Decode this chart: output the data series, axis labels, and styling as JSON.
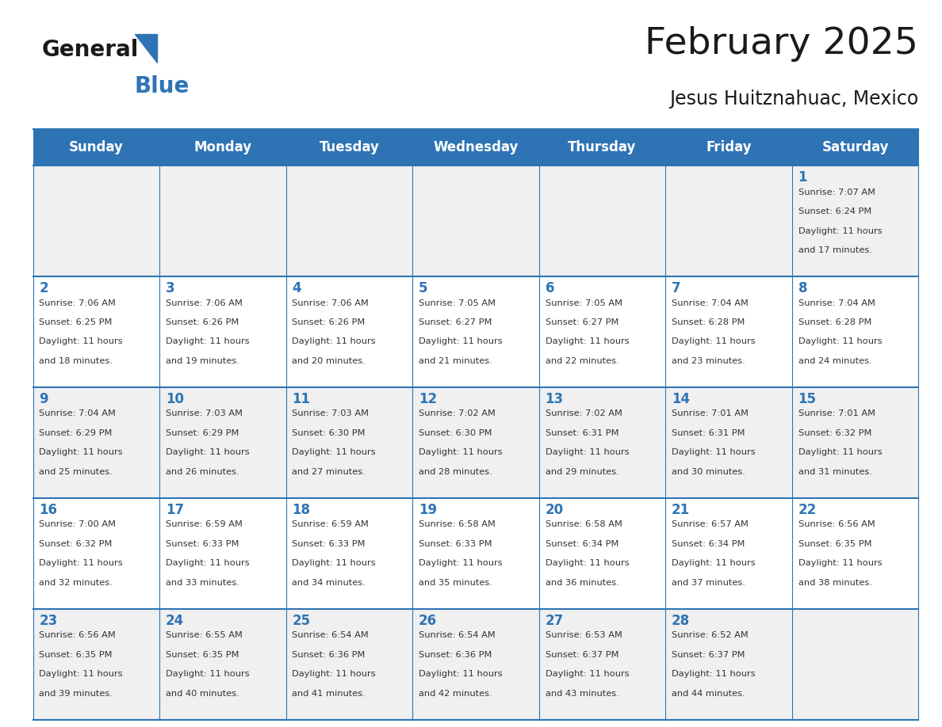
{
  "title": "February 2025",
  "subtitle": "Jesus Huitznahuac, Mexico",
  "days_of_week": [
    "Sunday",
    "Monday",
    "Tuesday",
    "Wednesday",
    "Thursday",
    "Friday",
    "Saturday"
  ],
  "header_bg": "#2E74B5",
  "header_text": "#FFFFFF",
  "cell_bg_odd": "#F0F0F0",
  "cell_bg_even": "#FFFFFF",
  "cell_border": "#2E74B5",
  "day_num_color": "#2E74B5",
  "info_color": "#333333",
  "calendar_data": [
    [
      null,
      null,
      null,
      null,
      null,
      null,
      1
    ],
    [
      2,
      3,
      4,
      5,
      6,
      7,
      8
    ],
    [
      9,
      10,
      11,
      12,
      13,
      14,
      15
    ],
    [
      16,
      17,
      18,
      19,
      20,
      21,
      22
    ],
    [
      23,
      24,
      25,
      26,
      27,
      28,
      null
    ]
  ],
  "sunrise_data": {
    "1": "7:07 AM",
    "2": "7:06 AM",
    "3": "7:06 AM",
    "4": "7:06 AM",
    "5": "7:05 AM",
    "6": "7:05 AM",
    "7": "7:04 AM",
    "8": "7:04 AM",
    "9": "7:04 AM",
    "10": "7:03 AM",
    "11": "7:03 AM",
    "12": "7:02 AM",
    "13": "7:02 AM",
    "14": "7:01 AM",
    "15": "7:01 AM",
    "16": "7:00 AM",
    "17": "6:59 AM",
    "18": "6:59 AM",
    "19": "6:58 AM",
    "20": "6:58 AM",
    "21": "6:57 AM",
    "22": "6:56 AM",
    "23": "6:56 AM",
    "24": "6:55 AM",
    "25": "6:54 AM",
    "26": "6:54 AM",
    "27": "6:53 AM",
    "28": "6:52 AM"
  },
  "sunset_data": {
    "1": "6:24 PM",
    "2": "6:25 PM",
    "3": "6:26 PM",
    "4": "6:26 PM",
    "5": "6:27 PM",
    "6": "6:27 PM",
    "7": "6:28 PM",
    "8": "6:28 PM",
    "9": "6:29 PM",
    "10": "6:29 PM",
    "11": "6:30 PM",
    "12": "6:30 PM",
    "13": "6:31 PM",
    "14": "6:31 PM",
    "15": "6:32 PM",
    "16": "6:32 PM",
    "17": "6:33 PM",
    "18": "6:33 PM",
    "19": "6:33 PM",
    "20": "6:34 PM",
    "21": "6:34 PM",
    "22": "6:35 PM",
    "23": "6:35 PM",
    "24": "6:35 PM",
    "25": "6:36 PM",
    "26": "6:36 PM",
    "27": "6:37 PM",
    "28": "6:37 PM"
  },
  "daylight_data": {
    "1": "11 hours and 17 minutes.",
    "2": "11 hours and 18 minutes.",
    "3": "11 hours and 19 minutes.",
    "4": "11 hours and 20 minutes.",
    "5": "11 hours and 21 minutes.",
    "6": "11 hours and 22 minutes.",
    "7": "11 hours and 23 minutes.",
    "8": "11 hours and 24 minutes.",
    "9": "11 hours and 25 minutes.",
    "10": "11 hours and 26 minutes.",
    "11": "11 hours and 27 minutes.",
    "12": "11 hours and 28 minutes.",
    "13": "11 hours and 29 minutes.",
    "14": "11 hours and 30 minutes.",
    "15": "11 hours and 31 minutes.",
    "16": "11 hours and 32 minutes.",
    "17": "11 hours and 33 minutes.",
    "18": "11 hours and 34 minutes.",
    "19": "11 hours and 35 minutes.",
    "20": "11 hours and 36 minutes.",
    "21": "11 hours and 37 minutes.",
    "22": "11 hours and 38 minutes.",
    "23": "11 hours and 39 minutes.",
    "24": "11 hours and 40 minutes.",
    "25": "11 hours and 41 minutes.",
    "26": "11 hours and 42 minutes.",
    "27": "11 hours and 43 minutes.",
    "28": "11 hours and 44 minutes."
  },
  "title_fontsize": 34,
  "subtitle_fontsize": 17,
  "header_fontsize": 12,
  "day_num_fontsize": 12,
  "info_fontsize": 8.2,
  "logo_general_color": "#1a1a1a",
  "logo_blue_color": "#2E74B5",
  "fig_width": 11.88,
  "fig_height": 9.18,
  "fig_dpi": 100
}
